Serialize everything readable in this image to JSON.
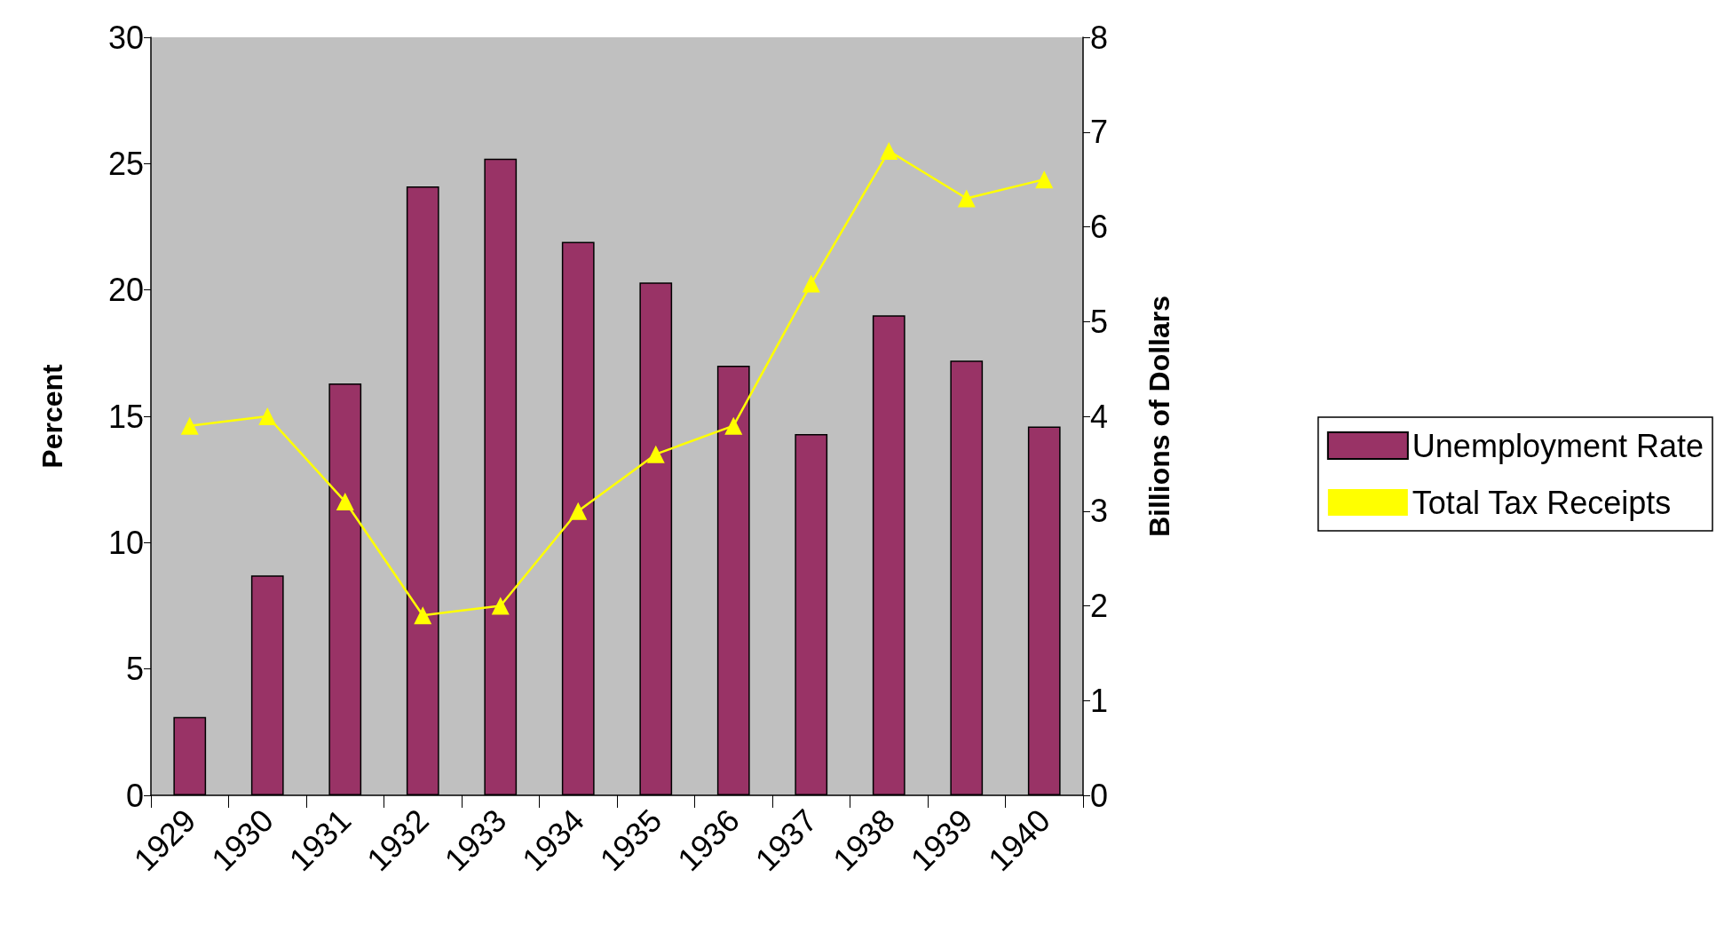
{
  "chart_data": {
    "type": "bar",
    "ylabel": "Percent",
    "y2label": "Billions of Dollars",
    "categories": [
      "1929",
      "1930",
      "1931",
      "1932",
      "1933",
      "1934",
      "1935",
      "1936",
      "1937",
      "1938",
      "1939",
      "1940"
    ],
    "series": [
      {
        "name": "Unemployment Rate",
        "color": "#993366",
        "values": [
          3.1,
          8.7,
          16.3,
          24.1,
          25.2,
          21.9,
          20.3,
          17.0,
          14.3,
          19.0,
          17.2,
          14.6
        ]
      },
      {
        "name": "Total Tax Receipts",
        "type": "line",
        "axis": "y2",
        "color": "#ffff00",
        "marker": "triangle",
        "values": [
          3.9,
          4.0,
          3.1,
          1.9,
          2.0,
          3.0,
          3.6,
          3.9,
          5.4,
          6.8,
          6.3,
          6.5
        ]
      }
    ],
    "ylim": [
      0,
      30
    ],
    "yticks": [
      0,
      5,
      10,
      15,
      20,
      25,
      30
    ],
    "y2lim": [
      0,
      8
    ],
    "y2ticks": [
      0,
      1,
      2,
      3,
      4,
      5,
      6,
      7,
      8
    ],
    "grid": false,
    "legend": "right"
  }
}
